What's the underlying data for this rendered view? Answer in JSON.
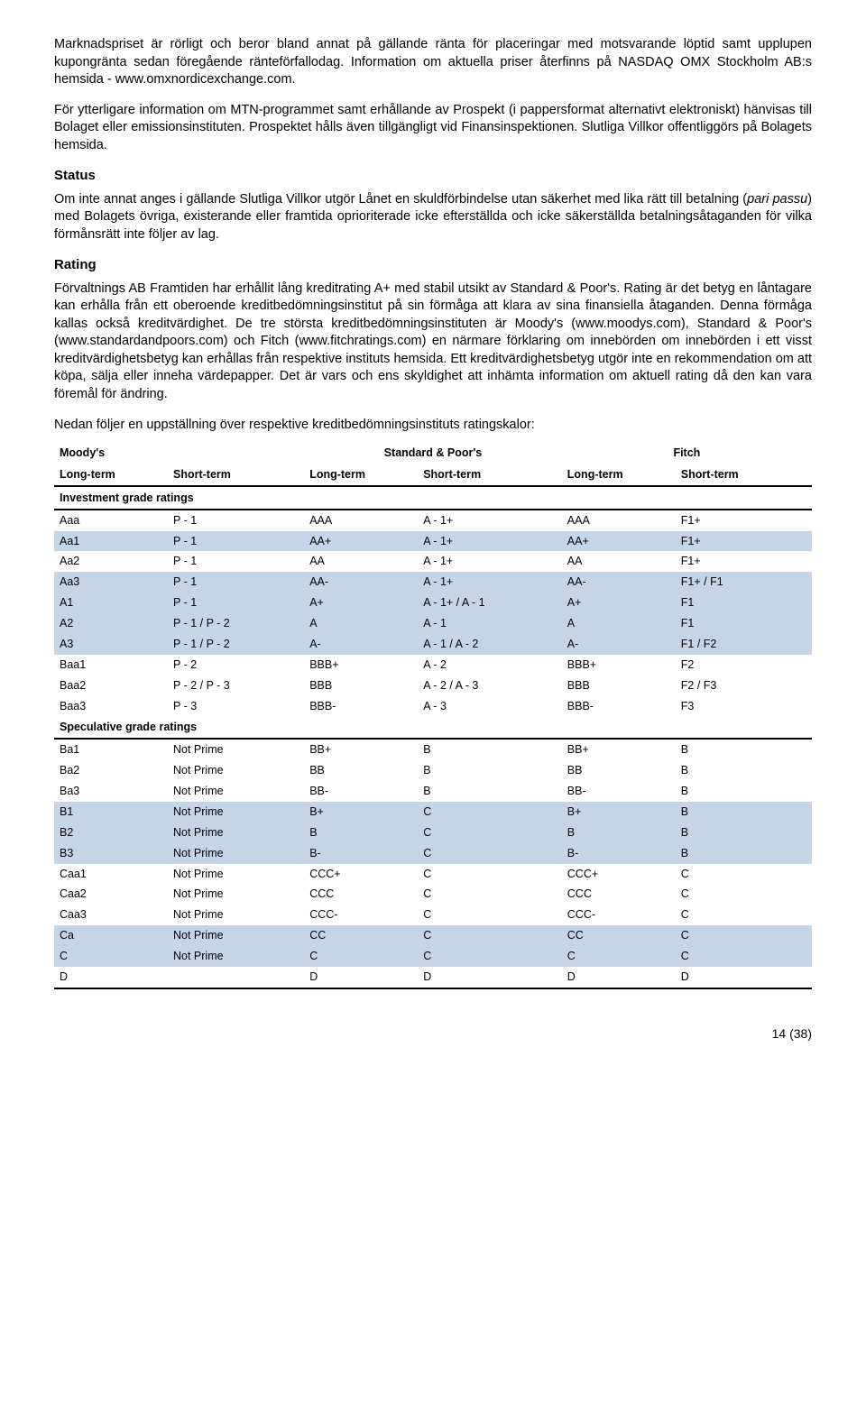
{
  "paragraphs": {
    "p1": "Marknadspriset är rörligt och beror bland annat på gällande ränta för placeringar med motsvarande löptid samt upplupen kupongränta sedan föregående ränteförfallodag. Information om aktuella priser återfinns på NASDAQ OMX Stockholm AB:s hemsida - www.omxnordicexchange.com.",
    "p2": "För ytterligare information om MTN-programmet samt erhållande av Prospekt (i pappersformat alternativt elektroniskt) hänvisas till Bolaget eller emissionsinstituten. Prospektet hålls även tillgängligt vid Finansinspektionen. Slutliga Villkor offentliggörs på Bolagets hemsida.",
    "status_title": "Status",
    "status_body_pre": "Om inte annat anges i gällande Slutliga Villkor utgör Lånet en skuldförbindelse utan säkerhet med lika rätt till betalning (",
    "status_body_italic": "pari passu",
    "status_body_post": ") med Bolagets övriga, existerande eller framtida oprioriterade icke efterställda och icke säkerställda betalningsåtaganden för vilka förmånsrätt inte följer av lag.",
    "rating_title": "Rating",
    "rating_body": "Förvaltnings AB Framtiden har erhållit lång kreditrating A+ med stabil utsikt av Standard & Poor's. Rating är det betyg en låntagare kan erhålla från ett oberoende kreditbedömningsinstitut på sin förmåga att klara av sina finansiella åtaganden. Denna förmåga kallas också kreditvärdighet. De tre största kreditbedömningsinstituten är Moody's (www.moodys.com), Standard & Poor's (www.standardandpoors.com) och Fitch (www.fitchratings.com) en närmare förklaring om innebörden om innebörden i ett visst kreditvärdighetsbetyg kan erhållas från respektive instituts hemsida. Ett kreditvärdighetsbetyg utgör inte en rekommendation om att köpa, sälja eller inneha värdepapper. Det är vars och ens skyldighet att inhämta information om aktuell rating då den kan vara föremål för ändring.",
    "table_intro": "Nedan följer en uppställning över respektive kreditbedömningsinstituts ratingskalor:"
  },
  "table": {
    "agencies": [
      "Moody's",
      "Standard & Poor's",
      "Fitch"
    ],
    "term_headers": [
      "Long-term",
      "Short-term",
      "Long-term",
      "Short-term",
      "Long-term",
      "Short-term"
    ],
    "section1": "Investment grade ratings",
    "section2": "Speculative grade ratings",
    "colors": {
      "highlight": "#c5d5e8",
      "border": "#000000"
    },
    "rows_investment": [
      {
        "hl": false,
        "c": [
          "Aaa",
          "P - 1",
          "AAA",
          "A - 1+",
          "AAA",
          "F1+"
        ]
      },
      {
        "hl": true,
        "c": [
          "Aa1",
          "P - 1",
          "AA+",
          "A - 1+",
          "AA+",
          "F1+"
        ]
      },
      {
        "hl": false,
        "c": [
          "Aa2",
          "P - 1",
          "AA",
          "A - 1+",
          "AA",
          "F1+"
        ]
      },
      {
        "hl": true,
        "c": [
          "Aa3",
          "P - 1",
          "AA-",
          "A - 1+",
          "AA-",
          "F1+ / F1"
        ]
      },
      {
        "hl": true,
        "c": [
          "A1",
          "P - 1",
          "A+",
          "A - 1+ / A - 1",
          "A+",
          "F1"
        ]
      },
      {
        "hl": true,
        "c": [
          "A2",
          "P - 1 / P - 2",
          "A",
          "A - 1",
          "A",
          "F1"
        ]
      },
      {
        "hl": true,
        "c": [
          "A3",
          "P - 1 / P - 2",
          "A-",
          "A - 1 / A - 2",
          "A-",
          "F1 / F2"
        ]
      },
      {
        "hl": false,
        "c": [
          "Baa1",
          "P - 2",
          "BBB+",
          "A - 2",
          "BBB+",
          "F2"
        ]
      },
      {
        "hl": false,
        "c": [
          "Baa2",
          "P - 2 / P - 3",
          "BBB",
          "A - 2 / A - 3",
          "BBB",
          "F2 / F3"
        ]
      },
      {
        "hl": false,
        "c": [
          "Baa3",
          "P - 3",
          "BBB-",
          "A - 3",
          "BBB-",
          "F3"
        ]
      }
    ],
    "rows_speculative": [
      {
        "hl": false,
        "c": [
          "Ba1",
          "Not Prime",
          "BB+",
          "B",
          "BB+",
          "B"
        ]
      },
      {
        "hl": false,
        "c": [
          "Ba2",
          "Not Prime",
          "BB",
          "B",
          "BB",
          "B"
        ]
      },
      {
        "hl": false,
        "c": [
          "Ba3",
          "Not Prime",
          "BB-",
          "B",
          "BB-",
          "B"
        ]
      },
      {
        "hl": true,
        "c": [
          "B1",
          "Not Prime",
          "B+",
          "C",
          "B+",
          "B"
        ]
      },
      {
        "hl": true,
        "c": [
          "B2",
          "Not Prime",
          "B",
          "C",
          "B",
          "B"
        ]
      },
      {
        "hl": true,
        "c": [
          "B3",
          "Not Prime",
          "B-",
          "C",
          "B-",
          "B"
        ]
      },
      {
        "hl": false,
        "c": [
          "Caa1",
          "Not Prime",
          "CCC+",
          "C",
          "CCC+",
          "C"
        ]
      },
      {
        "hl": false,
        "c": [
          "Caa2",
          "Not Prime",
          "CCC",
          "C",
          "CCC",
          "C"
        ]
      },
      {
        "hl": false,
        "c": [
          "Caa3",
          "Not Prime",
          "CCC-",
          "C",
          "CCC-",
          "C"
        ]
      },
      {
        "hl": true,
        "c": [
          "Ca",
          "Not Prime",
          "CC",
          "C",
          "CC",
          "C"
        ]
      },
      {
        "hl": true,
        "c": [
          "C",
          "Not Prime",
          "C",
          "C",
          "C",
          "C"
        ]
      },
      {
        "hl": false,
        "c": [
          "D",
          "",
          "D",
          "D",
          "D",
          "D"
        ]
      }
    ]
  },
  "page_number": "14 (38)"
}
